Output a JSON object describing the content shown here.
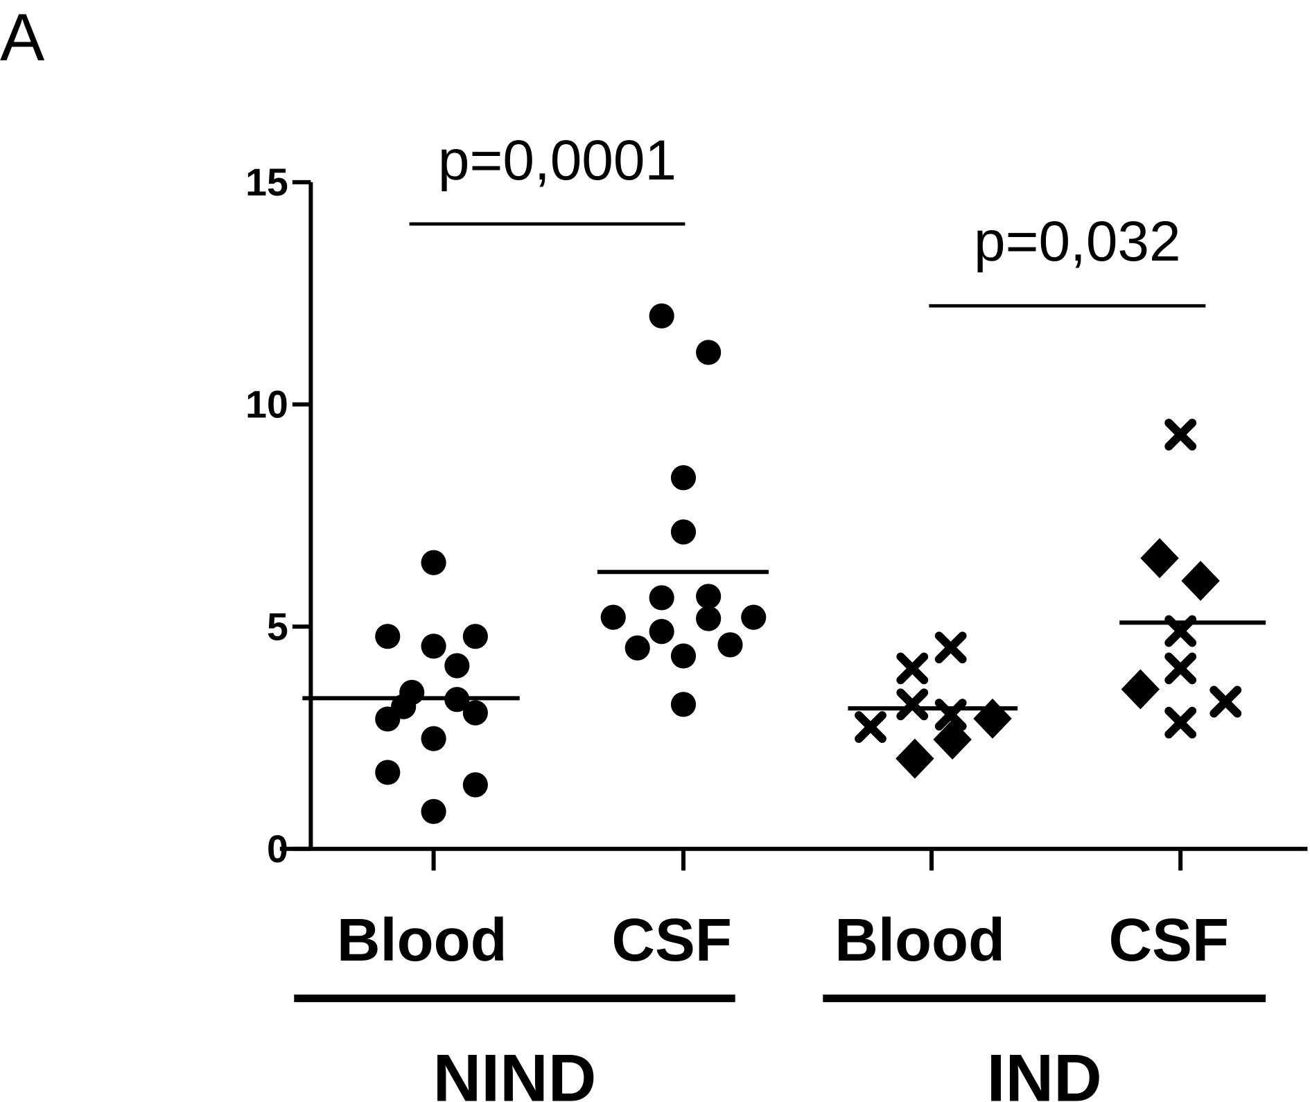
{
  "panel_label": "A",
  "chart_data": {
    "type": "scatter",
    "title": "",
    "xlabel": "",
    "ylabel": "",
    "ylim": [
      0,
      15
    ],
    "yticks": [
      "0",
      "5",
      "10",
      "15"
    ],
    "grid": false,
    "categories": [
      "Blood",
      "CSF",
      "Blood",
      "CSF"
    ],
    "groups": [
      {
        "label": "NIND",
        "categories": [
          0,
          1
        ]
      },
      {
        "label": "IND",
        "categories": [
          2,
          3
        ]
      }
    ],
    "comparisons": [
      {
        "label": "p=0,0001",
        "between": [
          0,
          1
        ]
      },
      {
        "label": "p=0,032",
        "between": [
          2,
          3
        ]
      }
    ],
    "series": [
      {
        "category": 0,
        "mean": 3.39,
        "points": [
          {
            "y": 6.44,
            "marker": "circle"
          },
          {
            "y": 4.78,
            "marker": "circle"
          },
          {
            "y": 4.78,
            "marker": "circle"
          },
          {
            "y": 4.56,
            "marker": "circle"
          },
          {
            "y": 4.12,
            "marker": "circle"
          },
          {
            "y": 3.52,
            "marker": "circle"
          },
          {
            "y": 3.2,
            "marker": "circle"
          },
          {
            "y": 3.36,
            "marker": "circle"
          },
          {
            "y": 3.06,
            "marker": "circle"
          },
          {
            "y": 2.92,
            "marker": "circle"
          },
          {
            "y": 2.48,
            "marker": "circle"
          },
          {
            "y": 1.72,
            "marker": "circle"
          },
          {
            "y": 1.44,
            "marker": "circle"
          },
          {
            "y": 0.84,
            "marker": "circle"
          }
        ]
      },
      {
        "category": 1,
        "mean": 6.23,
        "points": [
          {
            "y": 11.99,
            "marker": "circle"
          },
          {
            "y": 11.17,
            "marker": "circle"
          },
          {
            "y": 8.35,
            "marker": "circle"
          },
          {
            "y": 7.13,
            "marker": "circle"
          },
          {
            "y": 5.65,
            "marker": "circle"
          },
          {
            "y": 5.68,
            "marker": "circle"
          },
          {
            "y": 5.21,
            "marker": "circle"
          },
          {
            "y": 5.18,
            "marker": "circle"
          },
          {
            "y": 5.21,
            "marker": "circle"
          },
          {
            "y": 4.89,
            "marker": "circle"
          },
          {
            "y": 4.52,
            "marker": "circle"
          },
          {
            "y": 4.59,
            "marker": "circle"
          },
          {
            "y": 4.34,
            "marker": "circle"
          },
          {
            "y": 3.25,
            "marker": "circle"
          }
        ]
      },
      {
        "category": 2,
        "mean": 3.16,
        "points": [
          {
            "y": 2.74,
            "marker": "x"
          },
          {
            "y": 4.06,
            "marker": "x"
          },
          {
            "y": 4.53,
            "marker": "x"
          },
          {
            "y": 3.25,
            "marker": "x"
          },
          {
            "y": 3.02,
            "marker": "x"
          },
          {
            "y": 2.93,
            "marker": "diamond"
          },
          {
            "y": 2.03,
            "marker": "diamond"
          },
          {
            "y": 2.46,
            "marker": "diamond"
          }
        ]
      },
      {
        "category": 3,
        "mean": 5.09,
        "points": [
          {
            "y": 9.32,
            "marker": "x"
          },
          {
            "y": 6.54,
            "marker": "diamond"
          },
          {
            "y": 6.03,
            "marker": "diamond"
          },
          {
            "y": 4.9,
            "marker": "x"
          },
          {
            "y": 4.06,
            "marker": "x"
          },
          {
            "y": 3.59,
            "marker": "diamond"
          },
          {
            "y": 3.31,
            "marker": "x"
          },
          {
            "y": 2.84,
            "marker": "x"
          }
        ]
      }
    ]
  }
}
